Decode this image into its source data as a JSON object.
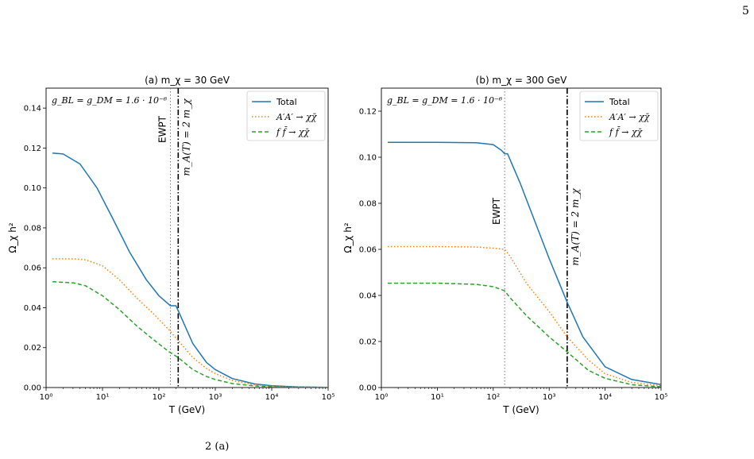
{
  "page_number": "5",
  "colors": {
    "total": "#1f77b4",
    "aa": "#ff7f0e",
    "ff": "#2ca02c",
    "ewpt": "#808080",
    "threshold": "#000000"
  },
  "caption_fragment": "2            (a)",
  "chart_data": [
    {
      "type": "line",
      "title": "(a) m_χ = 30 GeV",
      "xlabel": "T (GeV)",
      "ylabel": "Ω_χ h²",
      "xscale": "log",
      "xlim": [
        1,
        100000
      ],
      "ylim": [
        0,
        0.15
      ],
      "xticks": [
        {
          "v": 1,
          "label": "10⁰"
        },
        {
          "v": 10,
          "label": "10¹"
        },
        {
          "v": 100,
          "label": "10²"
        },
        {
          "v": 1000,
          "label": "10³"
        },
        {
          "v": 10000,
          "label": "10⁴"
        },
        {
          "v": 100000,
          "label": "10⁵"
        }
      ],
      "yticks": [
        "0.00",
        "0.02",
        "0.04",
        "0.06",
        "0.08",
        "0.10",
        "0.12",
        "0.14"
      ],
      "ytick_values": [
        0,
        0.02,
        0.04,
        0.06,
        0.08,
        0.1,
        0.12,
        0.14
      ],
      "annotation": "g_BL = g_DM = 1.6 · 10⁻⁶",
      "legend_position": "top-right",
      "vlines": [
        {
          "name": "EWPT",
          "x": 160,
          "style": "dotted"
        },
        {
          "name": "m_A(T) = 2 m_χ",
          "x": 220,
          "style": "dashdot"
        }
      ],
      "series": [
        {
          "name": "Total",
          "style": "solid",
          "x": [
            1.3,
            2,
            4,
            8,
            15,
            30,
            60,
            100,
            160,
            200,
            220,
            400,
            700,
            1000,
            2000,
            5000,
            10000,
            30000,
            100000
          ],
          "y": [
            0.1175,
            0.117,
            0.112,
            0.1,
            0.085,
            0.068,
            0.054,
            0.046,
            0.041,
            0.041,
            0.0385,
            0.022,
            0.0125,
            0.009,
            0.0045,
            0.0018,
            0.0009,
            0.0003,
            0.0001
          ]
        },
        {
          "name": "A′A′ → χχ̄",
          "style": "dotted",
          "x": [
            1.3,
            3,
            5,
            10,
            20,
            40,
            80,
            150,
            220,
            400,
            700,
            1000,
            2000,
            5000,
            10000,
            30000,
            100000
          ],
          "y": [
            0.0645,
            0.0645,
            0.064,
            0.061,
            0.054,
            0.045,
            0.037,
            0.029,
            0.0235,
            0.015,
            0.0095,
            0.007,
            0.0035,
            0.0013,
            0.0006,
            0.0002,
            0.0001
          ]
        },
        {
          "name": "f f̄ → χχ̄",
          "style": "dashed",
          "x": [
            1.3,
            3,
            5,
            10,
            20,
            40,
            80,
            150,
            220,
            400,
            700,
            1000,
            2000,
            5000,
            10000,
            30000,
            100000
          ],
          "y": [
            0.053,
            0.0525,
            0.051,
            0.046,
            0.039,
            0.031,
            0.024,
            0.018,
            0.015,
            0.009,
            0.0055,
            0.004,
            0.002,
            0.0008,
            0.0004,
            0.0001,
            5e-05
          ]
        }
      ]
    },
    {
      "type": "line",
      "title": "(b) m_χ = 300 GeV",
      "xlabel": "T (GeV)",
      "ylabel": "Ω_χ h²",
      "xscale": "log",
      "xlim": [
        1,
        100000
      ],
      "ylim": [
        0,
        0.13
      ],
      "xticks": [
        {
          "v": 1,
          "label": "10⁰"
        },
        {
          "v": 10,
          "label": "10¹"
        },
        {
          "v": 100,
          "label": "10²"
        },
        {
          "v": 1000,
          "label": "10³"
        },
        {
          "v": 10000,
          "label": "10⁴"
        },
        {
          "v": 100000,
          "label": "10⁵"
        }
      ],
      "yticks": [
        "0.00",
        "0.02",
        "0.04",
        "0.06",
        "0.08",
        "0.10",
        "0.12"
      ],
      "ytick_values": [
        0,
        0.02,
        0.04,
        0.06,
        0.08,
        0.1,
        0.12
      ],
      "annotation": "g_BL = g_DM = 1.6 · 10⁻⁶",
      "legend_position": "top-right",
      "vlines": [
        {
          "name": "EWPT",
          "x": 160,
          "style": "dotted"
        },
        {
          "name": "m_A(T) = 2 m_χ",
          "x": 2100,
          "style": "dashdot"
        }
      ],
      "series": [
        {
          "name": "Total",
          "style": "solid",
          "x": [
            1.3,
            10,
            50,
            100,
            140,
            160,
            180,
            300,
            500,
            1000,
            2100,
            4000,
            10000,
            30000,
            100000
          ],
          "y": [
            0.1065,
            0.1065,
            0.1063,
            0.1055,
            0.103,
            0.1015,
            0.1015,
            0.089,
            0.075,
            0.056,
            0.037,
            0.022,
            0.009,
            0.0035,
            0.0013
          ]
        },
        {
          "name": "A′A′ → χχ̄",
          "style": "dotted",
          "x": [
            1.3,
            10,
            50,
            100,
            160,
            200,
            400,
            1000,
            2100,
            5000,
            10000,
            30000,
            100000
          ],
          "y": [
            0.0612,
            0.0612,
            0.061,
            0.0605,
            0.06,
            0.057,
            0.045,
            0.033,
            0.022,
            0.012,
            0.006,
            0.0022,
            0.0008
          ]
        },
        {
          "name": "f f̄ → χχ̄",
          "style": "dashed",
          "x": [
            1.3,
            10,
            50,
            100,
            160,
            200,
            400,
            1000,
            2100,
            5000,
            10000,
            30000,
            100000
          ],
          "y": [
            0.0453,
            0.0453,
            0.0448,
            0.0438,
            0.042,
            0.039,
            0.031,
            0.022,
            0.0155,
            0.0075,
            0.004,
            0.0012,
            0.0003
          ]
        }
      ]
    }
  ]
}
